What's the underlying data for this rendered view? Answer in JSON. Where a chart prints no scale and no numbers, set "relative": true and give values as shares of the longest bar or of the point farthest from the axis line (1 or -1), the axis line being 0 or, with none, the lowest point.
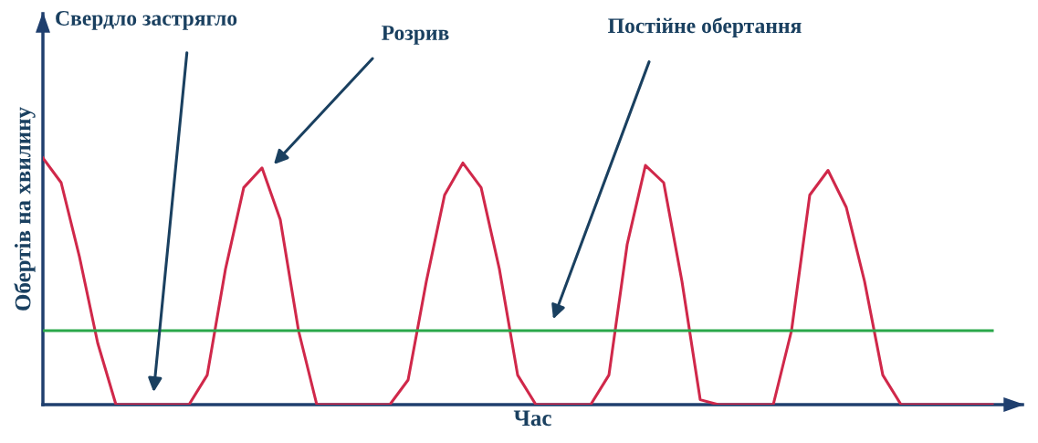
{
  "chart_data": {
    "type": "line",
    "relative": true,
    "xlabel": "Час",
    "ylabel": "Обертів на хвилину",
    "categories": [
      null,
      null,
      null,
      null,
      null,
      null,
      null,
      null,
      null,
      null,
      null,
      null,
      null,
      null,
      null,
      null,
      null,
      null,
      null,
      null,
      null,
      null,
      null,
      null,
      null,
      null,
      null,
      null,
      null,
      null,
      null,
      null,
      null,
      null,
      null,
      null,
      null,
      null,
      null,
      null,
      null,
      null,
      null,
      null,
      null,
      null,
      null,
      null,
      null,
      null,
      null,
      null,
      null
    ],
    "series": [
      {
        "color": "#d0284a",
        "values": [
          1.0,
          0.9,
          0.6,
          0.25,
          0,
          0,
          0,
          0,
          0,
          0.12,
          0.55,
          0.88,
          0.96,
          0.75,
          0.3,
          0,
          0,
          0,
          0,
          0,
          0.1,
          0.5,
          0.85,
          0.98,
          0.88,
          0.55,
          0.12,
          0,
          0,
          0,
          0,
          0.12,
          0.65,
          0.97,
          0.9,
          0.5,
          0.02,
          0,
          0,
          0,
          0,
          0.3,
          0.85,
          0.95,
          0.8,
          0.5,
          0.12,
          0,
          0,
          0,
          0,
          0,
          0
        ]
      },
      {
        "color": "#2aa84a",
        "values": [
          0.3,
          0.3,
          0.3,
          0.3,
          0.3,
          0.3,
          0.3,
          0.3,
          0.3,
          0.3,
          0.3,
          0.3,
          0.3,
          0.3,
          0.3,
          0.3,
          0.3,
          0.3,
          0.3,
          0.3,
          0.3,
          0.3,
          0.3,
          0.3,
          0.3,
          0.3,
          0.3,
          0.3,
          0.3,
          0.3,
          0.3,
          0.3,
          0.3,
          0.3,
          0.3,
          0.3,
          0.3,
          0.3,
          0.3,
          0.3,
          0.3,
          0.3,
          0.3,
          0.3,
          0.3,
          0.3,
          0.3,
          0.3,
          0.3,
          0.3,
          0.3,
          0.3,
          0.3
        ]
      }
    ],
    "annotations": [
      "Свердло застрягло",
      "Розрив",
      "Постійне обертання"
    ],
    "legend": false,
    "marker": "none",
    "line_style": "solid"
  }
}
